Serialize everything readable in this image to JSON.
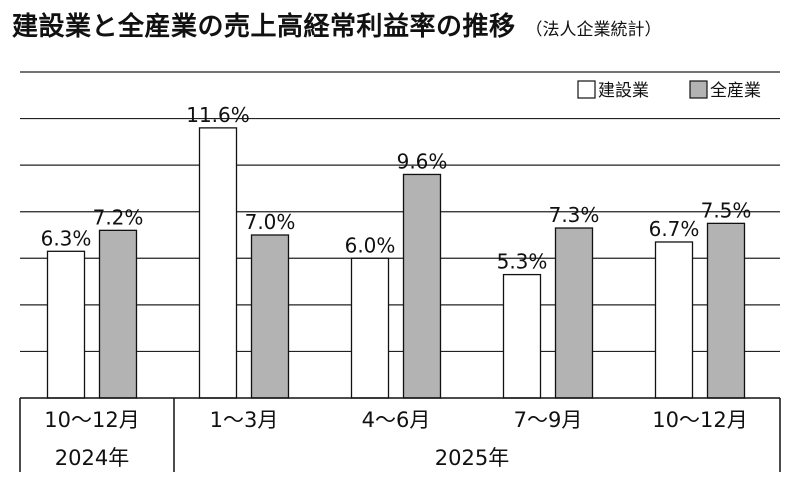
{
  "title": "建設業と全産業の売上高経常利益率の推移",
  "subtitle": "（法人企業統計）",
  "chart_data": {
    "type": "bar",
    "categories": [
      "10～12月",
      "1～3月",
      "4～6月",
      "7～9月",
      "10～12月"
    ],
    "year_groups": [
      {
        "label": "2024年",
        "categories": [
          0
        ]
      },
      {
        "label": "2025年",
        "categories": [
          1,
          2,
          3,
          4
        ]
      }
    ],
    "series": [
      {
        "name": "建設業",
        "color": "#ffffff",
        "values": [
          6.3,
          11.6,
          6.0,
          5.3,
          6.7
        ],
        "labels": [
          "6.3%",
          "11.6%",
          "6.0%",
          "5.3%",
          "6.7%"
        ]
      },
      {
        "name": "全産業",
        "color": "#b3b3b3",
        "values": [
          7.2,
          7.0,
          9.6,
          7.3,
          7.5
        ],
        "labels": [
          "7.2%",
          "7.0%",
          "9.6%",
          "7.3%",
          "7.5%"
        ]
      }
    ],
    "ylim": [
      0,
      14
    ],
    "y_gridlines": [
      2,
      4,
      6,
      8,
      10,
      12,
      14
    ],
    "grid": true,
    "legend": "top-right"
  }
}
